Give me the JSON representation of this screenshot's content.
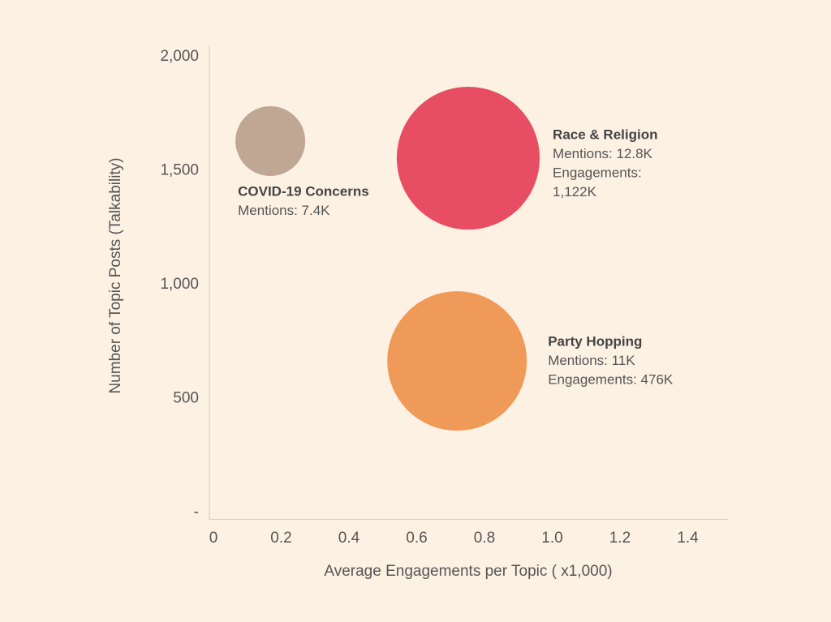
{
  "chart_data": {
    "type": "bubble",
    "x_label": "Average Engagements per Topic ( x1,000)",
    "y_label": "Number of Topic Posts (Talkability)",
    "xlim": [
      0,
      1.52
    ],
    "ylim": [
      -30,
      2050
    ],
    "xticks": [
      0,
      0.2,
      0.4,
      0.6,
      0.8,
      {
        "value": 1,
        "label": "1.0"
      },
      1.2,
      1.4
    ],
    "yticks": [
      {
        "value": 0,
        "label": "-"
      },
      500,
      {
        "value": 1000,
        "label": "1,000"
      },
      {
        "value": 1500,
        "label": "1,500"
      },
      {
        "value": 2000,
        "label": "2,000"
      }
    ],
    "size_unit_note_free": null,
    "series": [
      {
        "name": "COVID-19 Concerns",
        "color": "#bfa794",
        "x": [
          0.168
        ],
        "values": [
          1630
        ],
        "sizes": [
          0.103
        ],
        "annotation": [
          "COVID-19 Concerns",
          "Mentions: 7.4K"
        ]
      },
      {
        "name": "Race & Religion",
        "color": "#e84e63",
        "x": [
          0.752
        ],
        "values": [
          1555
        ],
        "sizes": [
          0.211
        ],
        "annotation": [
          "Race & Religion",
          "Mentions: 12.8K",
          "Engagements:",
          "1,122K"
        ]
      },
      {
        "name": "Party Hopping",
        "color": "#f09a5a",
        "x": [
          0.719
        ],
        "values": [
          665
        ],
        "sizes": [
          0.206
        ],
        "annotation": [
          "Party Hopping",
          "Mentions: 11K",
          "Engagements: 476K"
        ]
      }
    ]
  }
}
